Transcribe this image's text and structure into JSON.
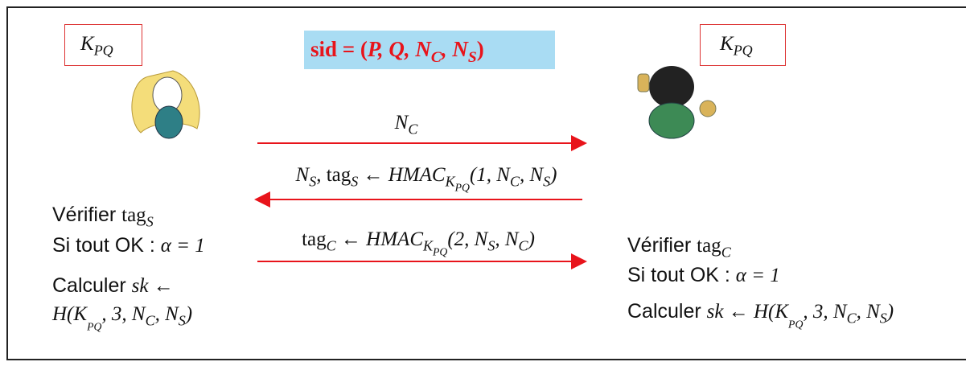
{
  "key_left": [
    "K",
    "PQ"
  ],
  "key_right": [
    "K",
    "PQ"
  ],
  "sid": [
    "sid = (",
    "P, Q, N",
    "C",
    ", N",
    "S",
    ")"
  ],
  "messages": [
    [
      "N",
      "C"
    ],
    [
      "N",
      "S",
      ", tag",
      "S",
      " ← HMAC",
      "K",
      "PQ",
      "(1, N",
      "C",
      ", N",
      "S",
      ")"
    ],
    [
      "tag",
      "C",
      " ← HMAC",
      "K",
      "PQ",
      "(2, N",
      "S",
      ", N",
      "C",
      ")"
    ]
  ],
  "left_steps": [
    [
      "Vérifier ",
      "tag",
      "S"
    ],
    [
      "Si tout OK : ",
      "α = 1"
    ],
    [
      "Calculer ",
      "sk ←"
    ],
    [
      "H(K",
      "PQ",
      ", 3, N",
      "C",
      ", N",
      "S",
      ")"
    ]
  ],
  "right_steps": [
    [
      "Vérifier ",
      "tag",
      "C"
    ],
    [
      "Si tout OK : ",
      "α = 1"
    ],
    [
      "Calculer ",
      "sk ← H(K",
      "PQ",
      ", 3, N",
      "C",
      ", N",
      "S",
      ")"
    ]
  ]
}
